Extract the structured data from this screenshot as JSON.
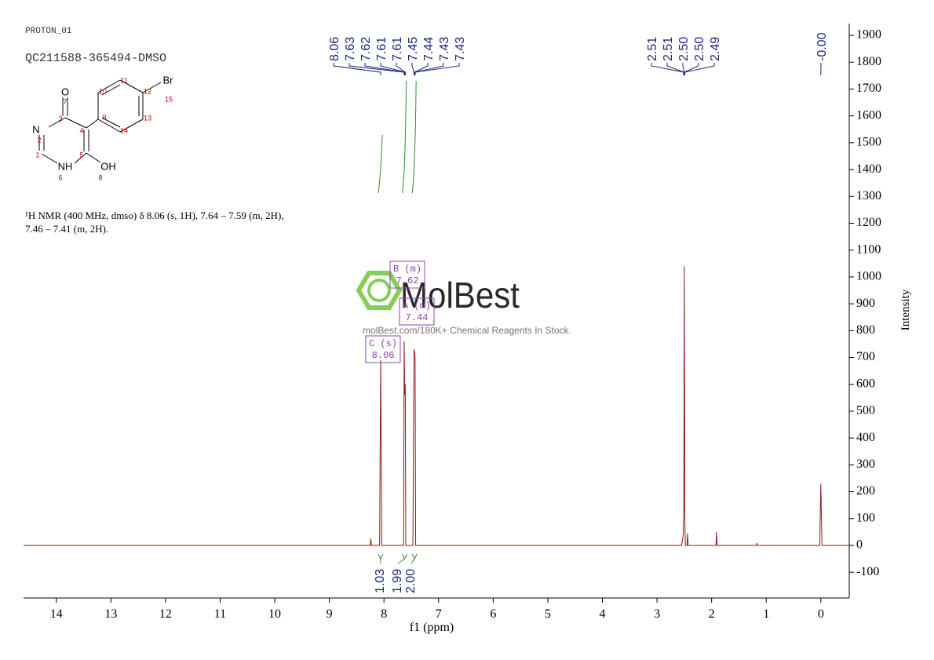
{
  "header": {
    "experiment": "PROTON_01",
    "sample": "QC211588-365494-DMSO"
  },
  "structure_labels": [
    "O",
    "7",
    "3",
    "N",
    "2",
    "1",
    "NH",
    "6",
    "5",
    "OH",
    "8",
    "4",
    "9",
    "10",
    "11",
    "12",
    "13",
    "14",
    "15",
    "Br"
  ],
  "description": [
    "¹H NMR (400 MHz, dmso) δ 8.06 (s, 1H), 7.64 – 7.59 (m, 2H),",
    "7.46 – 7.41 (m, 2H)."
  ],
  "watermark": {
    "logo": "MolBest",
    "text": "molBest.com/180K+ Chemical Reagents In Stock."
  },
  "chart_data": {
    "type": "line",
    "x_label": "f1 (ppm)",
    "y_label": "Intensity",
    "xlim": [
      14.6,
      -0.52
    ],
    "ylim": [
      -196,
      1944
    ],
    "xticks": [
      14,
      13,
      12,
      11,
      10,
      9,
      8,
      7,
      6,
      5,
      4,
      3,
      2,
      1,
      0
    ],
    "yticks": [
      -100,
      0,
      100,
      200,
      300,
      400,
      500,
      600,
      700,
      800,
      900,
      1000,
      1100,
      1200,
      1300,
      1400,
      1500,
      1600,
      1700,
      1800,
      1900
    ],
    "color": "#8b1a1a",
    "x": [
      14.6,
      8.25,
      8.24,
      8.23,
      8.08,
      8.06,
      8.04,
      7.64,
      7.63,
      7.62,
      7.61,
      7.6,
      7.59,
      7.47,
      7.45,
      7.44,
      7.43,
      7.42,
      7.41,
      2.55,
      2.52,
      2.51,
      2.5,
      2.49,
      2.48,
      2.45,
      2.44,
      2.43,
      1.92,
      1.91,
      1.9,
      1.18,
      1.17,
      1.16,
      0.02,
      0.0,
      -0.02,
      -0.52
    ],
    "values": [
      0,
      0,
      25,
      0,
      0,
      690,
      0,
      0,
      760,
      560,
      600,
      0,
      0,
      0,
      730,
      720,
      700,
      0,
      0,
      0,
      40,
      130,
      1040,
      90,
      0,
      0,
      45,
      0,
      0,
      50,
      0,
      0,
      8,
      0,
      0,
      230,
      0,
      0
    ],
    "peaks": [
      {
        "value": 8.06,
        "label": "8.06"
      },
      {
        "value": 7.63,
        "label": "7.63"
      },
      {
        "value": 7.62,
        "label": "7.62"
      },
      {
        "value": 7.61,
        "label": "7.61"
      },
      {
        "value": 7.61,
        "label": "7.61"
      },
      {
        "value": 7.45,
        "label": "7.45"
      },
      {
        "value": 7.44,
        "label": "7.44"
      },
      {
        "value": 7.43,
        "label": "7.43"
      },
      {
        "value": 7.43,
        "label": "7.43"
      },
      {
        "value": 2.51,
        "label": "2.51"
      },
      {
        "value": 2.51,
        "label": "2.51"
      },
      {
        "value": 2.5,
        "label": "2.50"
      },
      {
        "value": 2.5,
        "label": "2.50"
      },
      {
        "value": 2.49,
        "label": "2.49"
      },
      {
        "value": 0,
        "label": "-0.00"
      }
    ],
    "integrals": {
      "positions": [
        8.06,
        7.62,
        7.44
      ],
      "values": [
        1.03,
        1.99,
        2.0
      ],
      "value_labels": [
        "1.03",
        "1.99",
        "2.00"
      ]
    },
    "multiplets": [
      {
        "name": "C (s)",
        "shift": "8.06"
      },
      {
        "name": "B (m)",
        "shift": "7.62"
      },
      {
        "name": "A (m)",
        "shift": "7.44"
      }
    ]
  }
}
